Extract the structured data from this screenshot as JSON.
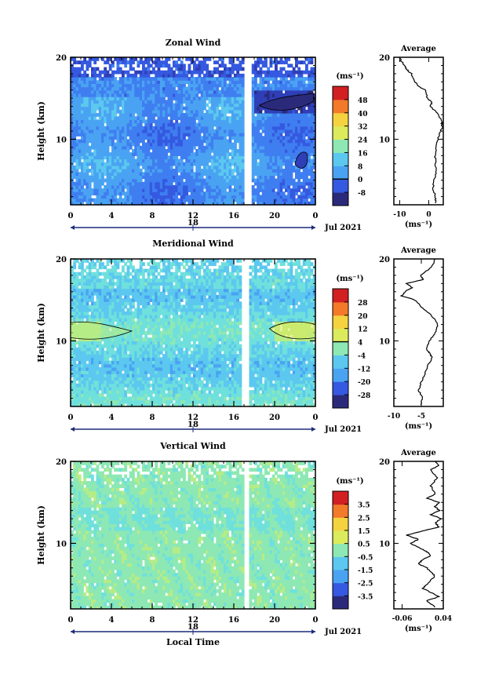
{
  "chart_data": [
    {
      "type": "heatmap",
      "title": "Zonal Wind",
      "ylabel": "Height (km)",
      "xlabel": "",
      "x_ticks": [
        "0",
        "4",
        "8",
        "12",
        "16",
        "20",
        "0"
      ],
      "y_ticks": [
        "20",
        "10"
      ],
      "xlim": [
        0,
        24
      ],
      "ylim": [
        2,
        20
      ],
      "date_day": "18",
      "date_label": "Jul 2021",
      "colorbar_unit": "(ms⁻¹)",
      "colorbar_ticks": [
        "48",
        "40",
        "32",
        "24",
        "16",
        "8",
        "0",
        "-8"
      ],
      "colorbar_range": [
        -12,
        52
      ],
      "contour_level": 0,
      "gap_hours": [
        17.0,
        17.7
      ],
      "field": {
        "base": 6,
        "upper_value": -2,
        "pattern": "zonal"
      },
      "average": {
        "title": "Average",
        "xlabel": "(ms⁻¹)",
        "x_ticks": [
          "-10",
          "0"
        ],
        "y_ticks": [
          "20",
          "10"
        ],
        "xlim": [
          -12,
          5
        ],
        "profile": [
          [
            2.2,
            2.2
          ],
          [
            3,
            2.4
          ],
          [
            4,
            1.5
          ],
          [
            5,
            1.8
          ],
          [
            6,
            2.6
          ],
          [
            7,
            2.4
          ],
          [
            8,
            2.2
          ],
          [
            9,
            2.5
          ],
          [
            10,
            3.1
          ],
          [
            11,
            4.2
          ],
          [
            11.5,
            4.6
          ],
          [
            12,
            4.5
          ],
          [
            13,
            3.5
          ],
          [
            14,
            0.6
          ],
          [
            14.5,
            1.2
          ],
          [
            15,
            -0.5
          ],
          [
            16,
            -1.2
          ],
          [
            16.5,
            -3.5
          ],
          [
            17,
            -4.8
          ],
          [
            18,
            -6
          ],
          [
            18.5,
            -7.5
          ],
          [
            19,
            -8.2
          ],
          [
            19.5,
            -9.5
          ],
          [
            20,
            -10
          ]
        ]
      }
    },
    {
      "type": "heatmap",
      "title": "Meridional Wind",
      "ylabel": "Height (km)",
      "xlabel": "",
      "x_ticks": [
        "0",
        "4",
        "8",
        "12",
        "16",
        "20",
        "0"
      ],
      "y_ticks": [
        "20",
        "10"
      ],
      "xlim": [
        0,
        24
      ],
      "ylim": [
        2,
        20
      ],
      "date_day": "18",
      "date_label": "Jul 2021",
      "colorbar_unit": "(ms⁻¹)",
      "colorbar_ticks": [
        "28",
        "20",
        "12",
        "4",
        "-4",
        "-12",
        "-20",
        "-28"
      ],
      "colorbar_range": [
        -32,
        32
      ],
      "contour_level": 0,
      "gap_hours": [
        16.8,
        17.6
      ],
      "field": {
        "base": -8,
        "pattern": "meridional"
      },
      "average": {
        "title": "Average",
        "xlabel": "(ms⁻¹)",
        "x_ticks": [
          "-10",
          "-5"
        ],
        "y_ticks": [
          "20",
          "10"
        ],
        "xlim": [
          -10,
          -1
        ],
        "profile": [
          [
            2.2,
            -5.0
          ],
          [
            3,
            -4.8
          ],
          [
            4,
            -5.5
          ],
          [
            5,
            -5.0
          ],
          [
            6,
            -4.4
          ],
          [
            7,
            -3.8
          ],
          [
            8,
            -3.0
          ],
          [
            8.5,
            -3.5
          ],
          [
            9,
            -4.0
          ],
          [
            10,
            -3.6
          ],
          [
            11,
            -2.4
          ],
          [
            12,
            -2.0
          ],
          [
            13,
            -3.0
          ],
          [
            14,
            -4.8
          ],
          [
            15,
            -6.2
          ],
          [
            15.5,
            -8.6
          ],
          [
            16,
            -8.0
          ],
          [
            16.5,
            -6.6
          ],
          [
            17,
            -7.8
          ],
          [
            17.5,
            -4.6
          ],
          [
            18,
            -5.2
          ],
          [
            19,
            -3.1
          ],
          [
            20,
            -2.5
          ]
        ]
      }
    },
    {
      "type": "heatmap",
      "title": "Vertical Wind",
      "ylabel": "Height (km)",
      "xlabel": "Local Time",
      "x_ticks": [
        "0",
        "4",
        "8",
        "12",
        "16",
        "20",
        "0"
      ],
      "y_ticks": [
        "20",
        "10"
      ],
      "xlim": [
        0,
        24
      ],
      "ylim": [
        2,
        20
      ],
      "date_day": "18",
      "date_label": "Jul 2021",
      "colorbar_unit": "(ms⁻¹)",
      "colorbar_ticks": [
        "3.5",
        "2.5",
        "1.5",
        "0.5",
        "-0.5",
        "-1.5",
        "-2.5",
        "-3.5"
      ],
      "colorbar_range": [
        -4,
        4
      ],
      "contour_level": null,
      "gap_hours": [
        16.9,
        17.6
      ],
      "field": {
        "base": 0.1,
        "pattern": "vertical"
      },
      "average": {
        "title": "Average",
        "xlabel": "(ms⁻¹)",
        "x_ticks": [
          "-0.06",
          "0.04"
        ],
        "y_ticks": [
          "20",
          "10"
        ],
        "xlim": [
          -0.08,
          0.04
        ],
        "profile": [
          [
            2.2,
            0.02
          ],
          [
            3,
            0.0
          ],
          [
            3.5,
            0.03
          ],
          [
            4,
            0.01
          ],
          [
            4.5,
            -0.01
          ],
          [
            5,
            0.0
          ],
          [
            6,
            0.02
          ],
          [
            6.5,
            0.01
          ],
          [
            7,
            0.0
          ],
          [
            7.5,
            -0.02
          ],
          [
            8,
            -0.01
          ],
          [
            8.5,
            0.01
          ],
          [
            9,
            0.0
          ],
          [
            9.5,
            -0.02
          ],
          [
            10,
            -0.04
          ],
          [
            10.5,
            -0.02
          ],
          [
            11,
            -0.05
          ],
          [
            11.5,
            -0.01
          ],
          [
            12,
            0.03
          ],
          [
            12.5,
            0.02
          ],
          [
            13,
            0.035
          ],
          [
            13.5,
            0.01
          ],
          [
            14,
            0.03
          ],
          [
            14.5,
            0.02
          ],
          [
            15,
            0.03
          ],
          [
            15.5,
            0.0
          ],
          [
            16,
            0.02
          ],
          [
            17,
            0.01
          ],
          [
            18,
            0.025
          ],
          [
            19,
            0.01
          ],
          [
            19.5,
            0.03
          ],
          [
            20,
            0.02
          ]
        ]
      }
    }
  ]
}
